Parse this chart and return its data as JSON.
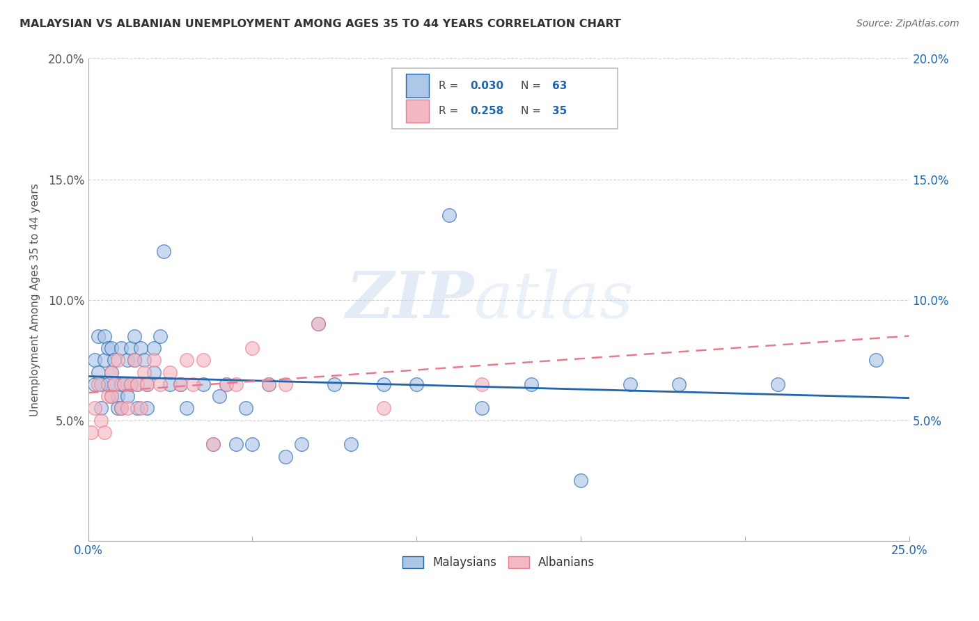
{
  "title": "MALAYSIAN VS ALBANIAN UNEMPLOYMENT AMONG AGES 35 TO 44 YEARS CORRELATION CHART",
  "source": "Source: ZipAtlas.com",
  "ylabel": "Unemployment Among Ages 35 to 44 years",
  "xmin": 0.0,
  "xmax": 0.25,
  "ymin": 0.0,
  "ymax": 0.2,
  "xticks": [
    0.0,
    0.05,
    0.1,
    0.15,
    0.2,
    0.25
  ],
  "xtick_labels": [
    "0.0%",
    "",
    "",
    "",
    "",
    "25.0%"
  ],
  "yticks": [
    0.0,
    0.05,
    0.1,
    0.15,
    0.2
  ],
  "ytick_labels": [
    "",
    "5.0%",
    "10.0%",
    "15.0%",
    "20.0%"
  ],
  "right_ytick_labels": [
    "5.0%",
    "10.0%",
    "15.0%",
    "20.0%"
  ],
  "malaysian_color": "#aec6e8",
  "albanian_color": "#f4b8c4",
  "trendline_malaysian_color": "#2166ac",
  "trendline_albanian_color": "#e87a8a",
  "R_malaysian": 0.03,
  "N_malaysian": 63,
  "R_albanian": 0.258,
  "N_albanian": 35,
  "malaysian_x": [
    0.002,
    0.002,
    0.003,
    0.003,
    0.004,
    0.004,
    0.005,
    0.005,
    0.006,
    0.006,
    0.007,
    0.007,
    0.007,
    0.008,
    0.008,
    0.009,
    0.009,
    0.01,
    0.01,
    0.01,
    0.011,
    0.012,
    0.012,
    0.013,
    0.013,
    0.014,
    0.014,
    0.015,
    0.015,
    0.016,
    0.017,
    0.018,
    0.018,
    0.02,
    0.02,
    0.022,
    0.023,
    0.025,
    0.028,
    0.03,
    0.035,
    0.038,
    0.04,
    0.042,
    0.045,
    0.048,
    0.05,
    0.055,
    0.06,
    0.065,
    0.07,
    0.075,
    0.08,
    0.09,
    0.1,
    0.11,
    0.12,
    0.135,
    0.15,
    0.165,
    0.18,
    0.21,
    0.24
  ],
  "malaysian_y": [
    0.075,
    0.065,
    0.085,
    0.07,
    0.055,
    0.065,
    0.075,
    0.085,
    0.08,
    0.065,
    0.07,
    0.06,
    0.08,
    0.075,
    0.065,
    0.06,
    0.055,
    0.08,
    0.065,
    0.055,
    0.065,
    0.075,
    0.06,
    0.065,
    0.08,
    0.085,
    0.075,
    0.065,
    0.055,
    0.08,
    0.075,
    0.065,
    0.055,
    0.07,
    0.08,
    0.085,
    0.12,
    0.065,
    0.065,
    0.055,
    0.065,
    0.04,
    0.06,
    0.065,
    0.04,
    0.055,
    0.04,
    0.065,
    0.035,
    0.04,
    0.09,
    0.065,
    0.04,
    0.065,
    0.065,
    0.135,
    0.055,
    0.065,
    0.025,
    0.065,
    0.065,
    0.065,
    0.075
  ],
  "albanian_x": [
    0.001,
    0.002,
    0.003,
    0.004,
    0.005,
    0.006,
    0.007,
    0.007,
    0.008,
    0.009,
    0.01,
    0.011,
    0.012,
    0.013,
    0.014,
    0.015,
    0.016,
    0.017,
    0.018,
    0.02,
    0.022,
    0.025,
    0.028,
    0.03,
    0.032,
    0.035,
    0.038,
    0.042,
    0.045,
    0.05,
    0.055,
    0.06,
    0.07,
    0.09,
    0.12
  ],
  "albanian_y": [
    0.045,
    0.055,
    0.065,
    0.05,
    0.045,
    0.06,
    0.07,
    0.06,
    0.065,
    0.075,
    0.055,
    0.065,
    0.055,
    0.065,
    0.075,
    0.065,
    0.055,
    0.07,
    0.065,
    0.075,
    0.065,
    0.07,
    0.065,
    0.075,
    0.065,
    0.075,
    0.04,
    0.065,
    0.065,
    0.08,
    0.065,
    0.065,
    0.09,
    0.055,
    0.065
  ],
  "watermark_zip": "ZIP",
  "watermark_atlas": "atlas",
  "legend_text_color": "#2166ac",
  "background_color": "#ffffff",
  "grid_color": "#d0d0d0",
  "scatter_size": 200,
  "scatter_alpha": 0.65,
  "scatter_linewidth": 1.0
}
